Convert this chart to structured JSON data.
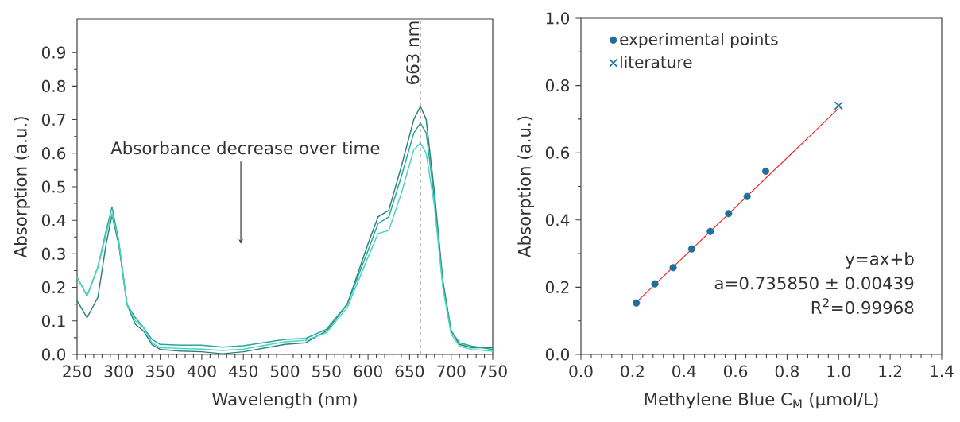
{
  "chart_data": [
    {
      "type": "line",
      "xlabel": "Wavelength (nm)",
      "ylabel": "Absorption (a.u.)",
      "x": [
        250,
        262,
        275,
        285,
        292,
        300,
        310,
        320,
        330,
        340,
        350,
        375,
        400,
        425,
        450,
        500,
        525,
        550,
        575,
        600,
        612,
        625,
        640,
        655,
        663,
        670,
        680,
        690,
        700,
        710,
        725,
        750
      ],
      "series": [
        {
          "color": "#2a7f78",
          "values": [
            0.16,
            0.11,
            0.17,
            0.33,
            0.415,
            0.33,
            0.15,
            0.09,
            0.07,
            0.03,
            0.015,
            0.01,
            0.008,
            0.002,
            0.008,
            0.03,
            0.035,
            0.07,
            0.15,
            0.33,
            0.41,
            0.43,
            0.56,
            0.7,
            0.74,
            0.7,
            0.48,
            0.22,
            0.07,
            0.03,
            0.02,
            0.02
          ]
        },
        {
          "color": "#25a89a",
          "values": [
            0.23,
            0.175,
            0.26,
            0.37,
            0.44,
            0.34,
            0.15,
            0.11,
            0.08,
            0.045,
            0.03,
            0.028,
            0.028,
            0.022,
            0.026,
            0.045,
            0.048,
            0.075,
            0.15,
            0.31,
            0.39,
            0.41,
            0.53,
            0.66,
            0.69,
            0.66,
            0.46,
            0.21,
            0.07,
            0.035,
            0.025,
            0.015
          ]
        },
        {
          "color": "#45d6c6",
          "values": [
            0.23,
            0.175,
            0.26,
            0.36,
            0.42,
            0.34,
            0.15,
            0.1,
            0.08,
            0.035,
            0.02,
            0.018,
            0.016,
            0.012,
            0.016,
            0.038,
            0.042,
            0.065,
            0.14,
            0.29,
            0.36,
            0.37,
            0.48,
            0.61,
            0.63,
            0.6,
            0.44,
            0.2,
            0.06,
            0.025,
            0.015,
            0.01
          ]
        }
      ],
      "xlim": [
        250,
        750
      ],
      "ylim": [
        0,
        1.0
      ],
      "xticks": [
        250,
        300,
        350,
        400,
        450,
        500,
        550,
        600,
        650,
        700,
        750
      ],
      "yticks": [
        {
          "value": 0,
          "label": "0.0"
        },
        {
          "value": 0.1,
          "label": "0.1"
        },
        {
          "value": 0.2,
          "label": "0.2"
        },
        {
          "value": 0.3,
          "label": "0.3"
        },
        {
          "value": 0.4,
          "label": "0.4"
        },
        {
          "value": 0.5,
          "label": "0.5"
        },
        {
          "value": 0.6,
          "label": "0.6"
        },
        {
          "value": 0.7,
          "label": "0.7"
        },
        {
          "value": 0.8,
          "label": "0.8"
        },
        {
          "value": 0.9,
          "label": "0.9"
        }
      ],
      "ref_lines": [
        {
          "axis": "x",
          "value": 663,
          "label": "663 nm",
          "line_style": "dashed",
          "color": "#808080"
        }
      ],
      "annotations": [
        "Absorbance decrease over time"
      ]
    },
    {
      "type": "scatter",
      "xlabel": "Methylene Blue C$_{M}$ (µmol/L)",
      "ylabel": "Absorption (a.u.)",
      "series": [
        {
          "type": "line",
          "color": "#ff2020",
          "x": [
            0.215,
            1.0
          ],
          "values": [
            0.155,
            0.732
          ]
        },
        {
          "name": "experimental points",
          "color": "#1f6f9b",
          "marker": "circle",
          "x": [
            0.215,
            0.287,
            0.358,
            0.43,
            0.502,
            0.573,
            0.645,
            0.717
          ],
          "values": [
            0.153,
            0.21,
            0.258,
            0.314,
            0.366,
            0.419,
            0.47,
            0.545
          ]
        },
        {
          "name": "literature",
          "color": "#1f6f9b",
          "marker": "cross",
          "x": [
            1.0
          ],
          "values": [
            0.74
          ]
        }
      ],
      "xlim": [
        0,
        1.4
      ],
      "ylim": [
        0,
        1.0
      ],
      "xticks": [
        {
          "value": 0,
          "label": "0.0"
        },
        {
          "value": 0.2,
          "label": "0.2"
        },
        {
          "value": 0.4,
          "label": "0.4"
        },
        {
          "value": 0.6,
          "label": "0.6"
        },
        {
          "value": 0.8,
          "label": "0.8"
        },
        {
          "value": 1.0,
          "label": "1.0"
        },
        {
          "value": 1.2,
          "label": "1.2"
        },
        {
          "value": 1.4,
          "label": "1.4"
        }
      ],
      "yticks": [
        {
          "value": 0,
          "label": "0.0"
        },
        {
          "value": 0.2,
          "label": "0.2"
        },
        {
          "value": 0.4,
          "label": "0.4"
        },
        {
          "value": 0.6,
          "label": "0.6"
        },
        {
          "value": 0.8,
          "label": "0.8"
        },
        {
          "value": 1.0,
          "label": "1.0"
        }
      ],
      "legend": "top left",
      "annotations": [
        "y=ax+b",
        "a=0.735850 ± 0.00439",
        "R$^{2}$=0.99968"
      ]
    }
  ]
}
